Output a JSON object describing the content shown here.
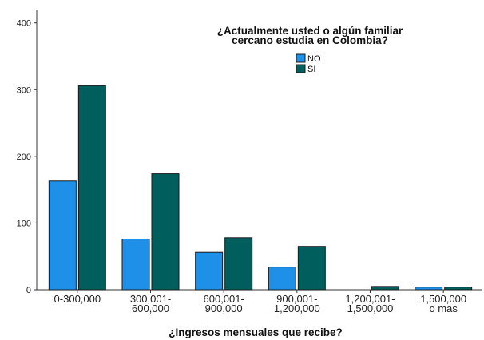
{
  "chart_data": {
    "type": "bar",
    "legend_title": [
      "¿Actualmente usted o algún familiar",
      "cercano estudia en Colombia?"
    ],
    "xlabel": "¿Ingresos mensuales que recibe?",
    "ylabel": "",
    "categories": [
      [
        "0-300,000"
      ],
      [
        "300,001-",
        "600,000"
      ],
      [
        "600,001-",
        "900,000"
      ],
      [
        "900,001-",
        "1,200,000"
      ],
      [
        "1,200,001-",
        "1,500,000"
      ],
      [
        "1,500,000",
        "o mas"
      ]
    ],
    "series": [
      {
        "name": "NO",
        "color": "#1e90e8",
        "values": [
          163,
          76,
          56,
          34,
          0,
          4
        ]
      },
      {
        "name": "SI",
        "color": "#005f5c",
        "values": [
          306,
          174,
          78,
          65,
          5,
          4
        ]
      }
    ],
    "ylim": [
      0,
      420
    ],
    "yticks": [
      0,
      100,
      200,
      300,
      400
    ],
    "grid": false,
    "legend_position": "top-right"
  }
}
